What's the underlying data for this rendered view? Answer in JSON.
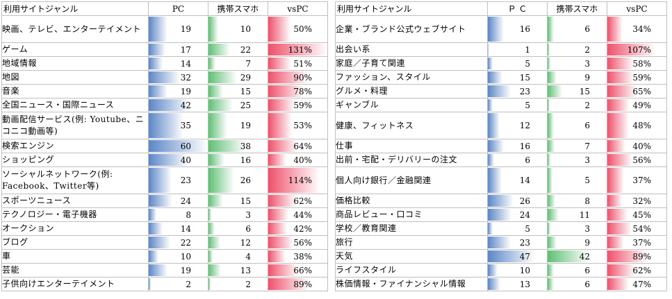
{
  "headers": {
    "genre": "利用サイトジャンル",
    "pc_left": "PC",
    "pc_right": "Ｐ Ｃ",
    "mobile": "携帯スマホ",
    "vspc": "vsPC"
  },
  "left_rows": [
    {
      "name": "映画、テレビ、エンターテイメント",
      "pc": 19,
      "mobile": 10,
      "vspc": "50%",
      "tall": true
    },
    {
      "name": "ゲーム",
      "pc": 17,
      "mobile": 22,
      "vspc": "131%"
    },
    {
      "name": "地域情報",
      "pc": 14,
      "mobile": 7,
      "vspc": "51%"
    },
    {
      "name": "地図",
      "pc": 32,
      "mobile": 29,
      "vspc": "90%"
    },
    {
      "name": "音楽",
      "pc": 19,
      "mobile": 15,
      "vspc": "78%"
    },
    {
      "name": "全国ニュース・国際ニュース",
      "pc": 42,
      "mobile": 25,
      "vspc": "59%"
    },
    {
      "name": "動画配信サービス(例: Youtube、ニコニコ動画等)",
      "pc": 35,
      "mobile": 19,
      "vspc": "53%",
      "tall": true
    },
    {
      "name": "検索エンジン",
      "pc": 60,
      "mobile": 38,
      "vspc": "64%"
    },
    {
      "name": "ショッピング",
      "pc": 40,
      "mobile": 16,
      "vspc": "40%"
    },
    {
      "name": "ソーシャルネットワーク(例: Facebook、Twitter等)",
      "pc": 23,
      "mobile": 26,
      "vspc": "114%",
      "tall": true
    },
    {
      "name": "スポーツニュース",
      "pc": 24,
      "mobile": 15,
      "vspc": "62%"
    },
    {
      "name": "テクノロジー・電子機器",
      "pc": 8,
      "mobile": 3,
      "vspc": "44%"
    },
    {
      "name": "オークション",
      "pc": 14,
      "mobile": 6,
      "vspc": "42%"
    },
    {
      "name": "ブログ",
      "pc": 22,
      "mobile": 12,
      "vspc": "56%"
    },
    {
      "name": "車",
      "pc": 10,
      "mobile": 4,
      "vspc": "38%"
    },
    {
      "name": "芸能",
      "pc": 19,
      "mobile": 13,
      "vspc": "66%"
    },
    {
      "name": "子供向けエンターテイメント",
      "pc": 2,
      "mobile": 2,
      "vspc": "89%"
    }
  ],
  "right_rows": [
    {
      "name": "企業・ブランド公式ウェブサイト",
      "pc": 16,
      "mobile": 6,
      "vspc": "34%",
      "tall": true
    },
    {
      "name": "出会い系",
      "pc": 1,
      "mobile": 2,
      "vspc": "107%"
    },
    {
      "name": "家庭／子育て関連",
      "pc": 5,
      "mobile": 3,
      "vspc": "58%"
    },
    {
      "name": "ファッション、スタイル",
      "pc": 15,
      "mobile": 9,
      "vspc": "59%"
    },
    {
      "name": "グルメ・料理",
      "pc": 23,
      "mobile": 15,
      "vspc": "65%"
    },
    {
      "name": "ギャンブル",
      "pc": 5,
      "mobile": 2,
      "vspc": "49%"
    },
    {
      "name": "健康、フィットネス",
      "pc": 12,
      "mobile": 6,
      "vspc": "48%",
      "tall": true
    },
    {
      "name": "仕事",
      "pc": 16,
      "mobile": 7,
      "vspc": "40%"
    },
    {
      "name": "出前・宅配・デリバリーの注文",
      "pc": 6,
      "mobile": 3,
      "vspc": "56%"
    },
    {
      "name": "個人向け銀行／金融関連",
      "pc": 14,
      "mobile": 5,
      "vspc": "37%",
      "tall": true
    },
    {
      "name": "価格比較",
      "pc": 26,
      "mobile": 8,
      "vspc": "32%"
    },
    {
      "name": "商品レビュー・口コミ",
      "pc": 24,
      "mobile": 11,
      "vspc": "45%"
    },
    {
      "name": "学校／教育関連",
      "pc": 5,
      "mobile": 3,
      "vspc": "54%"
    },
    {
      "name": "旅行",
      "pc": 23,
      "mobile": 9,
      "vspc": "37%"
    },
    {
      "name": "天気",
      "pc": 47,
      "mobile": 42,
      "vspc": "89%"
    },
    {
      "name": "ライフスタイル",
      "pc": 10,
      "mobile": 6,
      "vspc": "62%"
    },
    {
      "name": "株価情報・ファイナンシャル情報",
      "pc": 13,
      "mobile": 6,
      "vspc": "47%"
    }
  ],
  "scale": {
    "count_max": 60,
    "ratio_max": 131
  },
  "colors": {
    "pc": "#5b86c8",
    "mobile": "#5fbf74",
    "vspc": "#f0506b"
  }
}
